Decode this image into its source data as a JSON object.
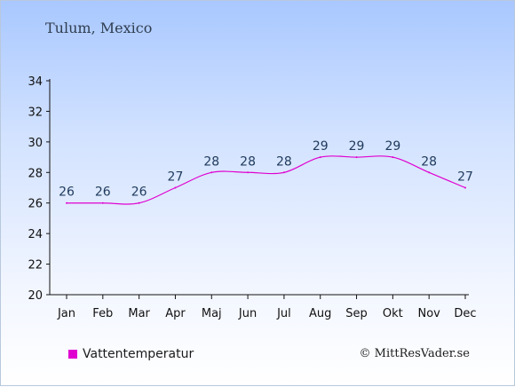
{
  "chart_data": {
    "type": "line",
    "title": "Tulum, Mexico",
    "categories": [
      "Jan",
      "Feb",
      "Mar",
      "Apr",
      "Maj",
      "Jun",
      "Jul",
      "Aug",
      "Sep",
      "Okt",
      "Nov",
      "Dec"
    ],
    "series": [
      {
        "name": "Vattentemperatur",
        "values": [
          26,
          26,
          26,
          27,
          28,
          28,
          28,
          29,
          29,
          29,
          28,
          27
        ],
        "color": "#e000d0"
      }
    ],
    "ylim": [
      20,
      34
    ],
    "yticks": [
      20,
      22,
      24,
      26,
      28,
      30,
      32,
      34
    ],
    "grid": false,
    "legend_position": "bottom-left"
  },
  "copyright": "© MittResVader.se"
}
